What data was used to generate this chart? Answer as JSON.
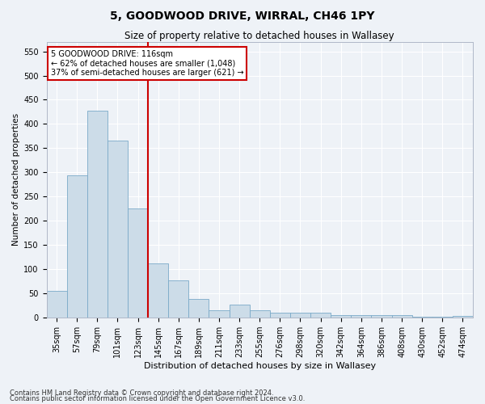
{
  "title": "5, GOODWOOD DRIVE, WIRRAL, CH46 1PY",
  "subtitle": "Size of property relative to detached houses in Wallasey",
  "xlabel": "Distribution of detached houses by size in Wallasey",
  "ylabel": "Number of detached properties",
  "footnote1": "Contains HM Land Registry data © Crown copyright and database right 2024.",
  "footnote2": "Contains public sector information licensed under the Open Government Licence v3.0.",
  "bar_labels": [
    "35sqm",
    "57sqm",
    "79sqm",
    "101sqm",
    "123sqm",
    "145sqm",
    "167sqm",
    "189sqm",
    "211sqm",
    "233sqm",
    "255sqm",
    "276sqm",
    "298sqm",
    "320sqm",
    "342sqm",
    "364sqm",
    "386sqm",
    "408sqm",
    "430sqm",
    "452sqm",
    "474sqm"
  ],
  "bar_values": [
    55,
    293,
    428,
    365,
    225,
    112,
    76,
    38,
    15,
    26,
    14,
    10,
    9,
    10,
    5,
    4,
    5,
    5,
    1,
    1,
    3
  ],
  "bar_color": "#ccdce8",
  "bar_edge_color": "#7aaac8",
  "ylim": [
    0,
    570
  ],
  "yticks": [
    0,
    50,
    100,
    150,
    200,
    250,
    300,
    350,
    400,
    450,
    500,
    550
  ],
  "vline_x": 4.5,
  "property_line_label": "5 GOODWOOD DRIVE: 116sqm",
  "annotation_line1": "← 62% of detached houses are smaller (1,048)",
  "annotation_line2": "37% of semi-detached houses are larger (621) →",
  "vline_color": "#cc0000",
  "background_color": "#eef2f7",
  "grid_color": "#ffffff",
  "title_fontsize": 10,
  "subtitle_fontsize": 8.5,
  "ylabel_fontsize": 7.5,
  "xlabel_fontsize": 8,
  "tick_fontsize": 7,
  "annot_fontsize": 7,
  "footnote_fontsize": 6
}
